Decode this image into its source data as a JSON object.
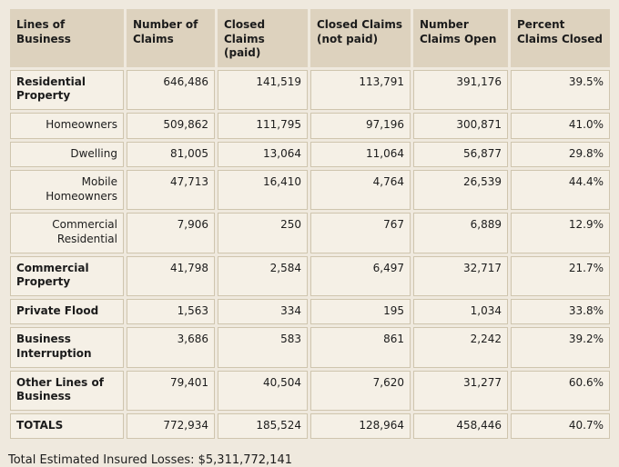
{
  "colors": {
    "page_bg": "#efe9de",
    "header_bg": "#ddd2be",
    "cell_bg": "#f5f0e6",
    "cell_border": "#cfc5ae",
    "text": "#1c1c1c"
  },
  "table": {
    "columns": [
      {
        "label": "Lines of\nBusiness"
      },
      {
        "label": "Number of\nClaims"
      },
      {
        "label": "Closed\nClaims\n(paid)"
      },
      {
        "label": "Closed Claims\n(not paid)"
      },
      {
        "label": "Number\nClaims Open"
      },
      {
        "label": "Percent\nClaims Closed"
      }
    ],
    "rows": [
      {
        "label": "Residential Property",
        "style": "group",
        "lines": 2,
        "values": [
          "646,486",
          "141,519",
          "113,791",
          "391,176",
          "39.5%"
        ]
      },
      {
        "label": "Homeowners",
        "style": "sub",
        "lines": 1,
        "values": [
          "509,862",
          "111,795",
          "97,196",
          "300,871",
          "41.0%"
        ]
      },
      {
        "label": "Dwelling",
        "style": "sub",
        "lines": 1,
        "values": [
          "81,005",
          "13,064",
          "11,064",
          "56,877",
          "29.8%"
        ]
      },
      {
        "label": "Mobile Homeowners",
        "style": "sub",
        "lines": 2,
        "values": [
          "47,713",
          "16,410",
          "4,764",
          "26,539",
          "44.4%"
        ]
      },
      {
        "label": "Commercial Residential",
        "style": "sub",
        "lines": 2,
        "values": [
          "7,906",
          "250",
          "767",
          "6,889",
          "12.9%"
        ]
      },
      {
        "label": "Commercial Property",
        "style": "group",
        "lines": 2,
        "values": [
          "41,798",
          "2,584",
          "6,497",
          "32,717",
          "21.7%"
        ]
      },
      {
        "label": "Private Flood",
        "style": "group",
        "lines": 1,
        "values": [
          "1,563",
          "334",
          "195",
          "1,034",
          "33.8%"
        ]
      },
      {
        "label": "Business Interruption",
        "style": "group",
        "lines": 2,
        "values": [
          "3,686",
          "583",
          "861",
          "2,242",
          "39.2%"
        ]
      },
      {
        "label": "Other Lines of Business",
        "style": "group",
        "lines": 2,
        "values": [
          "79,401",
          "40,504",
          "7,620",
          "31,277",
          "60.6%"
        ]
      },
      {
        "label": "TOTALS",
        "style": "total",
        "lines": 1,
        "values": [
          "772,934",
          "185,524",
          "128,964",
          "458,446",
          "40.7%"
        ]
      }
    ]
  },
  "footer": {
    "total_losses_label": "Total Estimated Insured Losses: $5,311,772,141"
  }
}
